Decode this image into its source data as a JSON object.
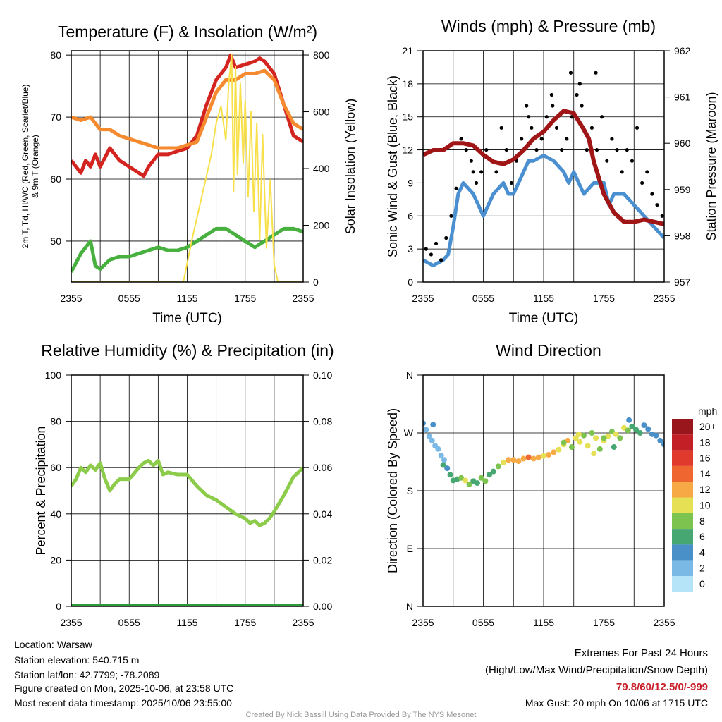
{
  "colors": {
    "temp": "#d42420",
    "temp9m": "#f58a2e",
    "dew": "#47b03e",
    "solar": "#f8e04a",
    "wind": "#4a90d0",
    "gust": "#000000",
    "pressure": "#a01515",
    "rh": "#8ccc4a",
    "precip": "#2e9a3a"
  },
  "chart_data": [
    {
      "type": "line",
      "title": "Temperature (F) & Insolation (W/m²)",
      "xlabel": "Time (UTC)",
      "ylabel": "2m T, Td, HI/WC (Red, Green, Scarlet/Blue) & 9m T (Orange)",
      "ylabel2": "Solar Insolation (Yellow)",
      "xticks": [
        "2355",
        "0555",
        "1155",
        "1755",
        "2355"
      ],
      "yticks": [
        "50",
        "60",
        "70",
        "80"
      ],
      "y2ticks": [
        "0",
        "200",
        "400",
        "600",
        "800"
      ],
      "ylim": [
        43.4,
        80.7
      ],
      "y2lim": [
        0,
        815
      ],
      "xlim": [
        0,
        24
      ],
      "series": [
        {
          "name": "2m T",
          "color": "temp",
          "axis": "left",
          "x": [
            0,
            0.5,
            1,
            1.5,
            2,
            2.5,
            3,
            4,
            5,
            6,
            7,
            7.5,
            8,
            9,
            10,
            11,
            12,
            13,
            14,
            15,
            16,
            16.5,
            17,
            18,
            19,
            19.5,
            20,
            21,
            22,
            23,
            24
          ],
          "y": [
            63,
            62,
            61,
            63,
            62,
            64,
            62,
            65,
            63,
            62,
            61,
            60.5,
            62,
            64,
            64,
            64.5,
            65,
            67,
            72,
            76,
            78,
            80,
            78,
            78.5,
            79,
            79.5,
            79,
            77,
            72,
            67,
            66
          ]
        },
        {
          "name": "9m T",
          "color": "temp9m",
          "axis": "left",
          "x": [
            0,
            1,
            2,
            3,
            4,
            5,
            6,
            7,
            8,
            9,
            10,
            11,
            12,
            13,
            14,
            15,
            16,
            17,
            18,
            19,
            20,
            21,
            22,
            23,
            24
          ],
          "y": [
            70,
            69.5,
            70,
            68,
            68,
            67,
            66.5,
            66,
            65.5,
            65,
            65,
            65,
            65.5,
            66,
            70,
            74,
            76,
            76,
            77,
            77,
            77.5,
            76,
            72,
            69,
            68
          ]
        },
        {
          "name": "2m Td",
          "color": "dew",
          "axis": "left",
          "x": [
            0,
            1,
            1.5,
            2,
            2.5,
            3,
            4,
            5,
            6,
            7,
            8,
            9,
            10,
            11,
            12,
            13,
            14,
            15,
            16,
            17,
            18,
            19,
            20,
            21,
            22,
            23,
            24
          ],
          "y": [
            45,
            48,
            49,
            50,
            46,
            45.5,
            47,
            47.5,
            47.5,
            48,
            48.5,
            49,
            48.5,
            48.5,
            49,
            50,
            51,
            52,
            52,
            51,
            50,
            49,
            50,
            51,
            52,
            52,
            51.5
          ]
        },
        {
          "name": "Solar",
          "color": "solar",
          "axis": "right",
          "x": [
            0,
            11.6,
            12.5,
            13.5,
            14.5,
            15,
            15.5,
            16,
            16.3,
            16.6,
            16.8,
            17,
            17.2,
            17.5,
            17.8,
            18,
            18.3,
            18.6,
            18.9,
            19.2,
            19.5,
            19.8,
            20.2,
            20.6,
            21,
            21.4,
            22,
            24
          ],
          "y": [
            0,
            0,
            150,
            300,
            450,
            560,
            620,
            500,
            700,
            800,
            320,
            760,
            380,
            700,
            420,
            640,
            300,
            600,
            250,
            560,
            150,
            520,
            120,
            360,
            60,
            0,
            0,
            0
          ]
        }
      ]
    },
    {
      "type": "line",
      "title": "Winds (mph) & Pressure (mb)",
      "xlabel": "Time (UTC)",
      "ylabel": "Sonic Wind & Gust (Blue, Black)",
      "ylabel2": "Station Pressure (Maroon)",
      "xticks": [
        "2355",
        "0555",
        "1155",
        "1755",
        "2355"
      ],
      "yticks": [
        "0",
        "3",
        "6",
        "9",
        "12",
        "15",
        "18",
        "21"
      ],
      "y2ticks": [
        "957",
        "958",
        "959",
        "960",
        "961",
        "962"
      ],
      "ylim": [
        0,
        21
      ],
      "y2lim": [
        957,
        962
      ],
      "xlim": [
        0,
        24
      ],
      "series": [
        {
          "name": "Wind",
          "color": "wind",
          "axis": "left",
          "x": [
            0,
            1,
            2,
            2.5,
            3,
            3.5,
            4,
            5,
            5.5,
            6,
            7,
            8,
            8.5,
            9,
            10,
            10.5,
            11,
            12,
            13,
            14,
            14.5,
            15,
            16,
            17,
            18,
            18.5,
            19,
            20,
            21,
            22,
            23,
            24
          ],
          "y": [
            2,
            1.5,
            2,
            2.5,
            5,
            8,
            9,
            8,
            7,
            6,
            8,
            9,
            8,
            8,
            10,
            11,
            11,
            11.5,
            11,
            10,
            9,
            10,
            8,
            9,
            9,
            7,
            8,
            8,
            7,
            6,
            5,
            4
          ]
        },
        {
          "name": "Pressure",
          "color": "pressure",
          "axis": "right",
          "x": [
            0,
            1,
            2,
            3,
            4,
            5,
            6,
            7,
            8,
            9,
            10,
            11,
            12,
            13,
            14,
            15,
            16,
            16.5,
            17,
            18,
            19,
            20,
            21,
            22,
            23,
            24
          ],
          "y": [
            959.75,
            959.85,
            959.85,
            960.0,
            960.0,
            959.95,
            959.75,
            959.6,
            959.55,
            959.65,
            959.85,
            960.1,
            960.25,
            960.5,
            960.7,
            960.65,
            960.3,
            960.1,
            959.6,
            958.9,
            958.5,
            958.3,
            958.3,
            958.35,
            958.3,
            958.25
          ]
        },
        {
          "name": "Gust",
          "color": "gust",
          "axis": "left",
          "kind": "scatter",
          "x": [
            0.3,
            0.8,
            1.3,
            1.8,
            2.3,
            2.8,
            3.3,
            3.8,
            4.3,
            4.8,
            5.3,
            5.8,
            6.3,
            6.8,
            7.3,
            7.8,
            8.3,
            8.8,
            9.3,
            9.8,
            10.3,
            10.8,
            11.3,
            11.8,
            12.3,
            12.8,
            13.3,
            13.8,
            14.3,
            14.8,
            15.3,
            15.8,
            16.3,
            16.8,
            17.3,
            17.8,
            18.3,
            18.8,
            19.3,
            19.8,
            20.3,
            20.8,
            21.3,
            21.8,
            22.3,
            22.8,
            23.3,
            23.8,
            5,
            10.5,
            14.7,
            15.6,
            17.2,
            12.9
          ],
          "y": [
            3,
            2.5,
            3.5,
            2,
            4,
            6,
            8.5,
            13,
            12,
            11,
            9,
            10,
            12,
            11,
            10,
            14,
            12,
            9,
            11,
            13,
            16,
            14,
            12,
            13,
            15,
            17,
            14,
            12,
            13,
            15,
            17,
            16,
            12,
            14,
            12,
            15,
            11,
            13,
            12,
            10,
            12,
            11,
            14,
            9,
            10,
            8,
            7,
            6,
            10,
            15,
            19,
            18,
            19,
            16
          ]
        }
      ]
    },
    {
      "type": "line",
      "title": "Relative Humidity (%) & Precipitation (in)",
      "xlabel": "",
      "ylabel": "Percent & Precipitation",
      "xticks": [
        "2355",
        "0555",
        "1155",
        "1755",
        "2355"
      ],
      "yticks": [
        "0",
        "20",
        "40",
        "60",
        "80",
        "100"
      ],
      "y2ticks": [
        "0.00",
        "0.02",
        "0.04",
        "0.06",
        "0.08",
        "0.10"
      ],
      "ylim": [
        0,
        100
      ],
      "y2lim": [
        0,
        0.1
      ],
      "xlim": [
        0,
        24
      ],
      "series": [
        {
          "name": "RH",
          "color": "rh",
          "axis": "left",
          "x": [
            0,
            0.5,
            1,
            1.5,
            2,
            2.5,
            3,
            3.5,
            4,
            4.5,
            5,
            6,
            7,
            7.5,
            8,
            8.5,
            9,
            9.5,
            10,
            11,
            12,
            13,
            14,
            15,
            16,
            17,
            18,
            18.5,
            19,
            19.5,
            20,
            20.5,
            21,
            22,
            23,
            24
          ],
          "y": [
            52,
            55,
            60,
            58,
            61,
            59,
            62,
            55,
            50,
            53,
            55,
            55,
            60,
            62,
            63,
            61,
            63,
            57,
            58,
            57,
            57,
            52,
            48,
            46,
            43,
            40,
            38,
            36,
            37,
            35,
            36,
            38,
            41,
            48,
            56,
            60
          ]
        },
        {
          "name": "Precipitation",
          "color": "precip",
          "axis": "right",
          "x": [
            0,
            24
          ],
          "y": [
            0,
            0
          ]
        }
      ]
    },
    {
      "type": "scatter",
      "title": "Wind Direction",
      "xlabel": "",
      "ylabel": "Direction (Colored By Speed)",
      "xticks": [
        "2355",
        "0555",
        "1155",
        "1755",
        "2355"
      ],
      "yticks": [
        "N",
        "E",
        "S",
        "W",
        "N"
      ],
      "ylim": [
        0,
        360
      ],
      "xlim": [
        0,
        24
      ],
      "legend": {
        "title": "mph",
        "labels": [
          "20+",
          "18",
          "16",
          "14",
          "12",
          "10",
          "8",
          "6",
          "4",
          "2",
          "0"
        ],
        "colors": [
          "#98161c",
          "#c31f26",
          "#e03a2c",
          "#f06630",
          "#f7a945",
          "#e6e055",
          "#7dc34f",
          "#47a772",
          "#4a90c8",
          "#7ab8e6",
          "#b5e3f7"
        ]
      },
      "x": [
        0,
        0.3,
        0.6,
        0.9,
        1.2,
        1.5,
        1.8,
        2.1,
        2.4,
        2.7,
        3,
        3.4,
        3.8,
        4.2,
        4.6,
        5,
        5.4,
        5.8,
        6.2,
        6.6,
        7,
        7.5,
        8,
        8.5,
        9,
        9.5,
        10,
        10.5,
        11,
        11.5,
        12,
        12.5,
        13,
        13.5,
        14,
        14.4,
        14.8,
        15.2,
        15.6,
        16,
        16.4,
        16.8,
        17.2,
        17.6,
        18,
        18.4,
        18.8,
        19.2,
        19.6,
        20,
        20.4,
        20.8,
        21.2,
        21.6,
        22,
        22.4,
        22.8,
        23.2,
        23.6,
        24,
        1,
        2,
        14,
        15.5,
        17,
        18,
        19,
        20.5
      ],
      "y": [
        285,
        275,
        265,
        258,
        250,
        245,
        235,
        228,
        215,
        205,
        196,
        198,
        200,
        196,
        190,
        195,
        192,
        200,
        195,
        205,
        210,
        218,
        224,
        228,
        228,
        226,
        230,
        232,
        230,
        232,
        234,
        236,
        240,
        244,
        252,
        258,
        248,
        262,
        256,
        266,
        250,
        270,
        262,
        245,
        258,
        265,
        272,
        268,
        262,
        278,
        274,
        280,
        275,
        270,
        282,
        276,
        268,
        266,
        258,
        252,
        283,
        220,
        255,
        268,
        238,
        262,
        248,
        290
      ],
      "speed": [
        4,
        2,
        2,
        2,
        2,
        2,
        2,
        2,
        4,
        6,
        6,
        6,
        8,
        10,
        8,
        6,
        6,
        8,
        8,
        6,
        6,
        8,
        10,
        12,
        12,
        12,
        12,
        14,
        12,
        12,
        10,
        12,
        12,
        10,
        10,
        12,
        8,
        10,
        10,
        8,
        10,
        8,
        10,
        8,
        10,
        10,
        8,
        10,
        8,
        10,
        8,
        6,
        6,
        6,
        4,
        4,
        4,
        4,
        4,
        4,
        4,
        6,
        8,
        10,
        10,
        8,
        6,
        4
      ]
    }
  ],
  "footer": {
    "location": "Location: Warsaw",
    "elevation": "Station elevation: 540.715 m",
    "latlon": "Station lat/lon: 42.7799; -78.2089",
    "created": "Figure created on Mon, 2025-10-06, at 23:58 UTC",
    "recent": "Most recent data timestamp: 2025/10/06 23:55:00",
    "extremes_title": "Extremes For Past 24 Hours",
    "extremes_sub": "(High/Low/Max Wind/Precipitation/Snow Depth)",
    "extremes_values": "79.8/60/12.5/0/-999",
    "max_gust": "Max Gust: 20 mph On 10/06 at 1715 UTC",
    "credit": "Created By Nick Bassill Using Data Provided By The NYS Mesonet"
  }
}
